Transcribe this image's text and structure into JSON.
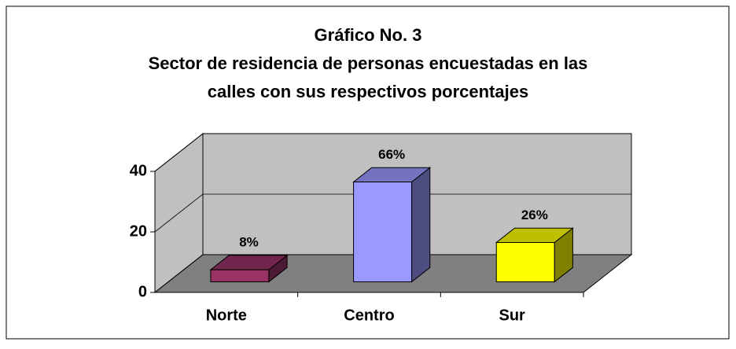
{
  "chart_data": {
    "type": "bar3d",
    "title": [
      "Gráfico No. 3",
      "Sector de residencia de personas encuestadas en las",
      "calles con sus respectivos porcentajes"
    ],
    "categories": [
      "Norte",
      "Centro",
      "Sur"
    ],
    "values": [
      4,
      33,
      13
    ],
    "value_labels": [
      "8%",
      "66%",
      "26%"
    ],
    "colors": [
      "#993366",
      "#9999ff",
      "#ffff00"
    ],
    "ylim": [
      0,
      40
    ],
    "yticks": [
      0,
      20,
      40
    ],
    "grid": true
  }
}
